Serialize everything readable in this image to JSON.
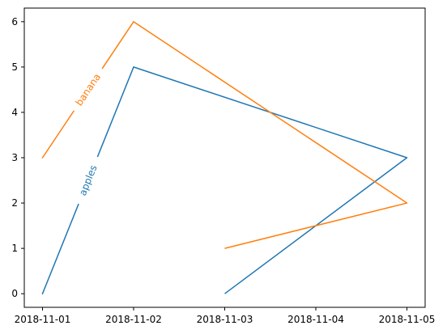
{
  "chart_data": {
    "type": "line",
    "title": "",
    "xlabel": "",
    "ylabel": "",
    "x_ticks": [
      "2018-11-01",
      "2018-11-02",
      "2018-11-03",
      "2018-11-04",
      "2018-11-05"
    ],
    "y_ticks": [
      "0",
      "1",
      "2",
      "3",
      "4",
      "5",
      "6"
    ],
    "xlim": [
      "2018-11-01",
      "2018-11-05"
    ],
    "ylim": [
      0,
      6
    ],
    "grid": false,
    "legend": "none",
    "series": [
      {
        "name": "apples",
        "color": "#1f77b4",
        "points": [
          {
            "x": "2018-11-01",
            "y": 0
          },
          {
            "x": "2018-11-02",
            "y": 5
          },
          {
            "x": "2018-11-05",
            "y": 3
          },
          {
            "x": "2018-11-03",
            "y": 0
          }
        ]
      },
      {
        "name": "banana",
        "color": "#ff7f0e",
        "points": [
          {
            "x": "2018-11-01",
            "y": 3
          },
          {
            "x": "2018-11-02",
            "y": 6
          },
          {
            "x": "2018-11-05",
            "y": 2
          },
          {
            "x": "2018-11-03",
            "y": 1
          }
        ]
      }
    ]
  }
}
